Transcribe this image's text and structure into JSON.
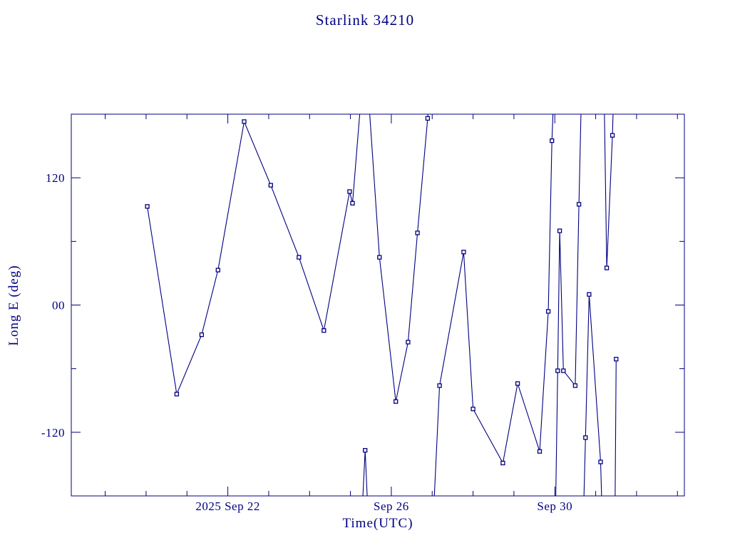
{
  "page": {
    "background": "#ffffff"
  },
  "chart_data": {
    "type": "line",
    "title": "Starlink 34210",
    "xlabel": "Time(UTC)",
    "ylabel": "Long E (deg)",
    "color": "#000080",
    "marker": "open-square",
    "grid": false,
    "legend": "none",
    "ylim": [
      -180,
      180
    ],
    "xlim_days_from_2025_Sep_18": [
      0,
      15
    ],
    "y_ticks_major": [
      {
        "v": 120,
        "label": "120"
      },
      {
        "v": 0,
        "label": "00"
      },
      {
        "v": -120,
        "label": "-120"
      }
    ],
    "y_ticks_minor": [
      -60,
      60
    ],
    "x_ticks_major": [
      {
        "t": 3.83,
        "label": "2025 Sep 22"
      },
      {
        "t": 7.83,
        "label": "Sep 26"
      },
      {
        "t": 11.83,
        "label": "Sep 30"
      }
    ],
    "x_ticks_minor": [
      0.83,
      1.83,
      2.83,
      4.83,
      5.83,
      6.83,
      8.83,
      9.83,
      10.83,
      12.83,
      13.83,
      14.83
    ],
    "units": {
      "t": "days since 2025 Sep 18 00:00 UTC",
      "v": "degrees east longitude"
    },
    "segments": [
      {
        "points": [
          {
            "t": 1.86,
            "v": 93,
            "m": 1
          },
          {
            "t": 2.58,
            "v": -84,
            "m": 1
          },
          {
            "t": 3.19,
            "v": -28,
            "m": 1
          },
          {
            "t": 3.59,
            "v": 33,
            "m": 1
          },
          {
            "t": 4.23,
            "v": 173,
            "m": 1
          },
          {
            "t": 4.88,
            "v": 113,
            "m": 1
          },
          {
            "t": 5.57,
            "v": 45,
            "m": 1
          },
          {
            "t": 6.18,
            "v": -24,
            "m": 1
          },
          {
            "t": 6.81,
            "v": 107,
            "m": 1
          },
          {
            "t": 6.88,
            "v": 96,
            "m": 1
          },
          {
            "t": 7.13,
            "v": 215,
            "m": 0
          }
        ]
      },
      {
        "points": [
          {
            "t": 7.09,
            "v": -215,
            "m": 0
          },
          {
            "t": 7.19,
            "v": -137,
            "m": 1
          },
          {
            "t": 7.28,
            "v": -215,
            "m": 0
          }
        ]
      },
      {
        "points": [
          {
            "t": 7.24,
            "v": 215,
            "m": 0
          },
          {
            "t": 7.54,
            "v": 45,
            "m": 1
          },
          {
            "t": 7.94,
            "v": -91,
            "m": 1
          },
          {
            "t": 8.24,
            "v": -35,
            "m": 1
          },
          {
            "t": 8.47,
            "v": 68,
            "m": 1
          },
          {
            "t": 8.72,
            "v": 176,
            "m": 1
          },
          {
            "t": 8.78,
            "v": 215,
            "m": 0
          }
        ]
      },
      {
        "points": [
          {
            "t": 8.84,
            "v": -215,
            "m": 0
          },
          {
            "t": 9.01,
            "v": -76,
            "m": 1
          },
          {
            "t": 9.6,
            "v": 50,
            "m": 1
          },
          {
            "t": 9.83,
            "v": -98,
            "m": 1
          },
          {
            "t": 10.56,
            "v": -149,
            "m": 1
          },
          {
            "t": 10.92,
            "v": -74,
            "m": 1
          },
          {
            "t": 11.46,
            "v": -138,
            "m": 1
          },
          {
            "t": 11.67,
            "v": -6,
            "m": 1
          },
          {
            "t": 11.76,
            "v": 155,
            "m": 1
          },
          {
            "t": 11.82,
            "v": 215,
            "m": 0
          }
        ]
      },
      {
        "points": [
          {
            "t": 11.84,
            "v": -215,
            "m": 0
          },
          {
            "t": 11.9,
            "v": -62,
            "m": 1
          },
          {
            "t": 11.95,
            "v": 70,
            "m": 1
          },
          {
            "t": 12.04,
            "v": -62,
            "m": 1
          },
          {
            "t": 12.33,
            "v": -76,
            "m": 1
          },
          {
            "t": 12.42,
            "v": 95,
            "m": 1
          },
          {
            "t": 12.49,
            "v": 215,
            "m": 0
          }
        ]
      },
      {
        "points": [
          {
            "t": 12.52,
            "v": -215,
            "m": 0
          },
          {
            "t": 12.58,
            "v": -125,
            "m": 1
          },
          {
            "t": 12.67,
            "v": 10,
            "m": 1
          },
          {
            "t": 12.95,
            "v": -148,
            "m": 1
          },
          {
            "t": 13.0,
            "v": -215,
            "m": 0
          }
        ]
      },
      {
        "points": [
          {
            "t": 13.03,
            "v": 215,
            "m": 0
          },
          {
            "t": 13.1,
            "v": 35,
            "m": 1
          },
          {
            "t": 13.24,
            "v": 160,
            "m": 1
          },
          {
            "t": 13.28,
            "v": 215,
            "m": 0
          }
        ]
      },
      {
        "points": [
          {
            "t": 13.3,
            "v": -215,
            "m": 0
          },
          {
            "t": 13.33,
            "v": -51,
            "m": 1
          }
        ]
      }
    ]
  }
}
